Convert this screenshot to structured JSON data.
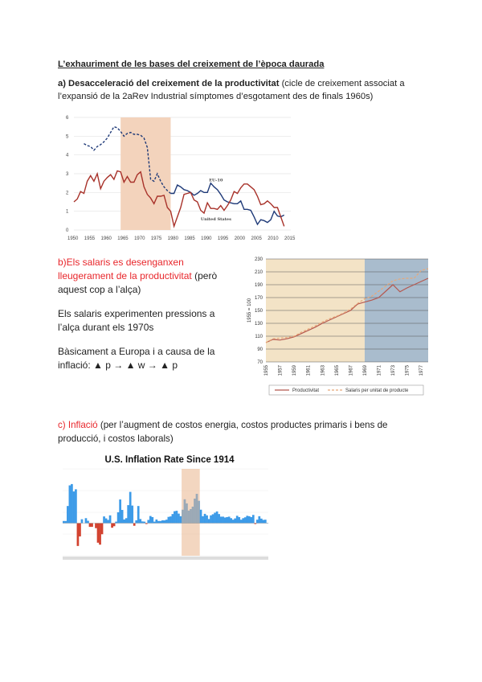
{
  "title": "L’exhauriment de les bases del creixement de l’època daurada",
  "section_a": {
    "heading": "a) Desacceleració del creixement de la productivitat",
    "rest": " (cicle de creixement associat a l’expansió de la 2aRev Industrial símptomes d’esgotament des de finals 1960s)"
  },
  "section_b": {
    "heading": "b)Els salaris es desenganxen lleugerament de la productivitat",
    "rest": " (però aquest cop a l’alça)",
    "p2": " Els salaris experimenten pressions a l’alça durant els 1970s",
    "p3": " Bàsicament a Europa i a causa de la inflació: ▲ p → ▲ w → ▲ p"
  },
  "section_c": {
    "heading": "c) Inflació",
    "rest": " (per l’augment de costos energia, costos productes primaris i bens de producció, i costos laborals)"
  },
  "chart_data": [
    {
      "type": "line",
      "title": "",
      "xlim": [
        1950,
        2015
      ],
      "ylim": [
        0,
        6
      ],
      "xticks": [
        "1950",
        "1955",
        "1960",
        "1965",
        "1970",
        "1975",
        "1980",
        "1985",
        "1990",
        "1995",
        "2000",
        "2005",
        "2010",
        "2015"
      ],
      "yticks": [
        "0",
        "1",
        "2",
        "3",
        "4",
        "5",
        "6"
      ],
      "shaded": [
        1964,
        1979
      ],
      "series": [
        {
          "name": "EU-10",
          "color": "#1f3a78",
          "start": 1953,
          "dashed_until": 1979,
          "values": [
            4.6,
            4.5,
            4.45,
            4.25,
            4.45,
            4.55,
            4.7,
            4.9,
            5.2,
            5.5,
            5.45,
            5.25,
            5.0,
            5.15,
            5.2,
            5.1,
            5.1,
            5.05,
            4.9,
            4.4,
            2.7,
            2.6,
            3.0,
            2.6,
            2.3,
            2.1,
            1.95,
            1.95,
            2.4,
            2.3,
            2.15,
            2.1,
            2.0,
            1.85,
            1.95,
            2.1,
            2.0,
            2.0,
            2.5,
            2.3,
            2.15,
            1.9,
            1.6,
            1.5,
            1.45,
            1.4,
            1.4,
            1.55,
            1.1,
            1.1,
            1.05,
            0.7,
            0.3,
            0.55,
            0.5,
            0.4,
            0.55,
            1.0,
            0.75,
            0.7,
            0.8
          ]
        },
        {
          "name": "United States",
          "color": "#a8322a",
          "start": 1950,
          "values": [
            1.5,
            1.65,
            2.05,
            1.95,
            2.6,
            2.9,
            2.6,
            3.0,
            2.2,
            2.6,
            2.8,
            2.95,
            2.7,
            3.15,
            3.1,
            2.55,
            2.85,
            2.55,
            2.55,
            2.95,
            3.1,
            2.3,
            1.9,
            1.7,
            1.4,
            1.8,
            1.8,
            1.85,
            1.2,
            1.0,
            0.2,
            0.7,
            1.2,
            1.9,
            1.95,
            2.0,
            1.6,
            1.5,
            1.05,
            0.9,
            1.45,
            1.15,
            1.15,
            1.1,
            1.3,
            1.05,
            1.3,
            1.6,
            2.05,
            1.95,
            2.25,
            2.45,
            2.45,
            2.3,
            2.15,
            1.8,
            1.35,
            1.4,
            1.55,
            1.4,
            1.2,
            1.2,
            0.7,
            0.2
          ]
        }
      ]
    },
    {
      "type": "line",
      "ylabel": "1955 = 100",
      "xlim": [
        1955,
        1978
      ],
      "ylim": [
        70,
        230
      ],
      "xticks": [
        "1955",
        "1957",
        "1959",
        "1961",
        "1963",
        "1965",
        "1967",
        "1969",
        "1971",
        "1973",
        "1975",
        "1977"
      ],
      "yticks": [
        "70",
        "90",
        "110",
        "130",
        "150",
        "170",
        "190",
        "210",
        "230"
      ],
      "shaded_split": 1969,
      "series": [
        {
          "name": "Productivitat",
          "color": "#b5584f",
          "start": 1955,
          "values": [
            100,
            105,
            104,
            106,
            109,
            114,
            119,
            124,
            130,
            135,
            140,
            145,
            150,
            160,
            163,
            166,
            170,
            180,
            190,
            179,
            185,
            190,
            195,
            200
          ]
        },
        {
          "name": "Salaris per unitat de producte",
          "color": "#e8a878",
          "dashed": true,
          "start": 1955,
          "values": [
            100,
            106,
            107,
            108,
            110,
            116,
            121,
            126,
            132,
            137,
            141,
            146,
            152,
            161,
            168,
            172,
            180,
            188,
            196,
            199,
            200,
            200,
            212,
            215
          ]
        }
      ]
    },
    {
      "type": "bar",
      "title": "U.S. Inflation Rate Since 1914",
      "xlim": [
        1914,
        2015
      ],
      "ylim": [
        -15,
        25
      ],
      "shaded": [
        1973,
        1982
      ],
      "series": [
        {
          "name": "Inflation",
          "positive_color": "#3d9be8",
          "negative_color": "#d2412e",
          "start": 1914,
          "values": [
            1,
            1,
            7.9,
            17.4,
            18,
            14.6,
            15.6,
            -10.5,
            -6.1,
            1.8,
            0,
            2.3,
            1.1,
            -1.7,
            -1.7,
            0,
            -2.3,
            -9,
            -9.9,
            -5.1,
            3.1,
            2.2,
            1.5,
            3.6,
            -2.1,
            -1.4,
            0.7,
            5,
            10.9,
            6.1,
            1.7,
            2.3,
            8.3,
            14.4,
            8.1,
            -1.2,
            1.3,
            7.9,
            1.9,
            0.8,
            0.7,
            -0.4,
            1.5,
            3.3,
            2.8,
            0.7,
            1.7,
            1,
            1,
            1.3,
            1.3,
            1.6,
            2.9,
            3.1,
            4.2,
            5.5,
            5.7,
            4.4,
            3.2,
            6.2,
            11,
            9.1,
            5.8,
            6.5,
            7.6,
            11.3,
            13.5,
            10.3,
            6.2,
            3.2,
            4.3,
            3.6,
            1.9,
            3.6,
            4.1,
            4.8,
            5.4,
            4.2,
            3,
            3,
            2.6,
            2.8,
            3,
            2.3,
            1.6,
            2.2,
            3.4,
            2.8,
            1.6,
            2.3,
            2.7,
            3.4,
            3.2,
            2.8,
            3.8,
            -0.4,
            1.6,
            3.2,
            2.1,
            1.5,
            1.6,
            0.1
          ]
        }
      ]
    }
  ]
}
